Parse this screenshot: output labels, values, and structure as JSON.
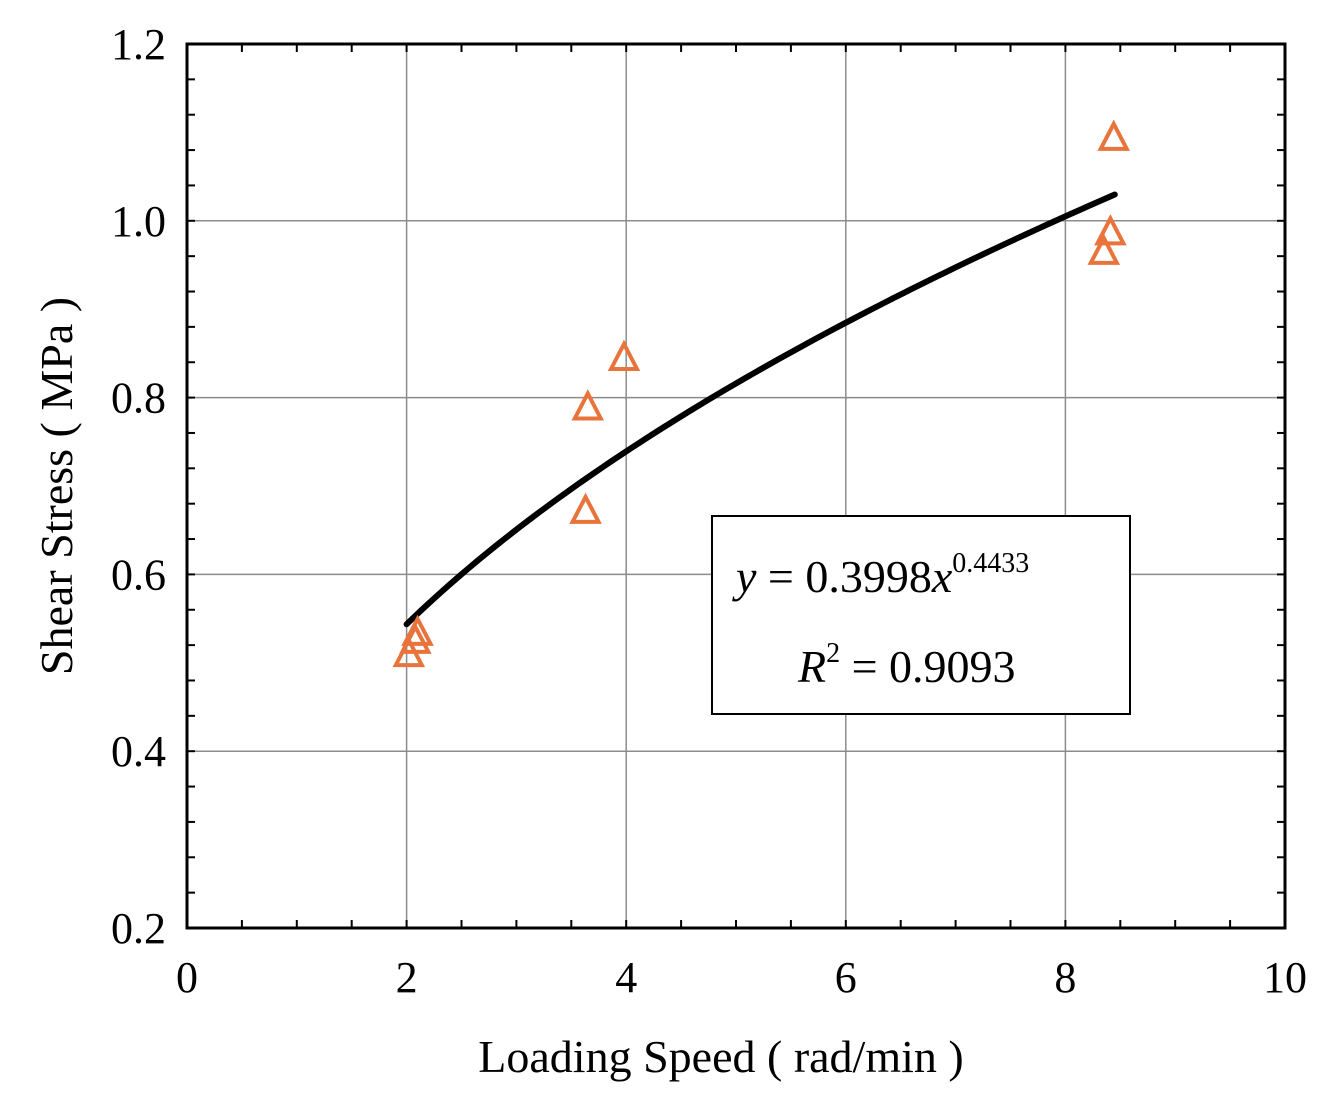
{
  "chart_data": {
    "type": "scatter",
    "xlabel": "Loading Speed ( rad/min )",
    "ylabel": "Shear Stress ( MPa )",
    "xlim": [
      0,
      10
    ],
    "ylim": [
      0.2,
      1.2
    ],
    "xticks": [
      0,
      2,
      4,
      6,
      8,
      10
    ],
    "xtick_labels": [
      "0",
      "2",
      "4",
      "6",
      "8",
      "10"
    ],
    "yticks": [
      0.2,
      0.4,
      0.6,
      0.8,
      1.0,
      1.2
    ],
    "ytick_labels": [
      "0.2",
      "0.4",
      "0.6",
      "0.8",
      "1.0",
      "1.2"
    ],
    "grid": true,
    "marker_color": "#e8743b",
    "series": [
      {
        "marker": "triangle",
        "x": [
          2.02,
          2.08,
          2.1,
          3.63,
          3.65,
          3.98,
          8.35,
          8.41,
          8.44
        ],
        "y": [
          0.508,
          0.523,
          0.532,
          0.67,
          0.787,
          0.843,
          0.963,
          0.985,
          1.092
        ]
      }
    ],
    "fit": {
      "type": "power",
      "a": 0.3998,
      "b": 0.4433,
      "x_range": [
        2.0,
        8.45
      ],
      "r2": 0.9093,
      "color": "#000000"
    },
    "annotation": {
      "eq_lhs": "y",
      "eq_mid": " = 0.3998",
      "eq_var": "x",
      "eq_exp": "0.4433",
      "r2_var": "R",
      "r2_exp": "2",
      "r2_rhs": " = 0.9093"
    }
  }
}
